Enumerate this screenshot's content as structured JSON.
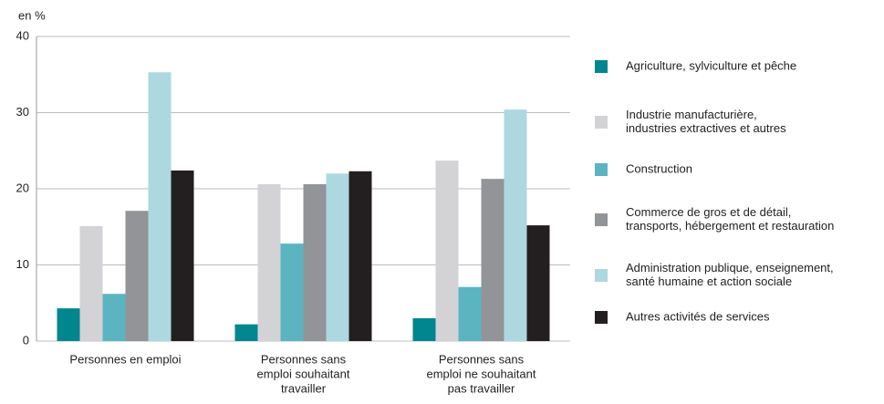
{
  "chart_data": {
    "type": "bar",
    "y_label": "en %",
    "categories": [
      [
        "Personnes en emploi"
      ],
      [
        "Personnes sans",
        "emploi souhaitant",
        "travailler"
      ],
      [
        "Personnes sans",
        "emploi ne souhaitant",
        "pas travailler"
      ]
    ],
    "series": [
      {
        "name": [
          "Agriculture, sylviculture et pêche"
        ],
        "color": "#00868f",
        "values": [
          4.3,
          2.2,
          3.0
        ]
      },
      {
        "name": [
          "Industrie manufacturière,",
          "industries extractives et autres"
        ],
        "color": "#d3d3d5",
        "values": [
          15.1,
          20.6,
          23.7
        ]
      },
      {
        "name": [
          "Construction"
        ],
        "color": "#5bb5c1",
        "values": [
          6.2,
          12.8,
          7.1
        ]
      },
      {
        "name": [
          "Commerce de gros et de détail,",
          "transports, hébergement et restauration"
        ],
        "color": "#929497",
        "values": [
          17.1,
          20.6,
          21.3
        ]
      },
      {
        "name": [
          "Administration publique, enseignement,",
          "santé humaine et action sociale"
        ],
        "color": "#add8df",
        "values": [
          35.3,
          22.0,
          30.4
        ]
      },
      {
        "name": [
          "Autres activités de services"
        ],
        "color": "#231f20",
        "values": [
          22.4,
          22.3,
          15.2
        ]
      }
    ],
    "ylim": [
      0,
      40
    ],
    "yticks": [
      0,
      10,
      20,
      30,
      40
    ],
    "grid": true
  }
}
